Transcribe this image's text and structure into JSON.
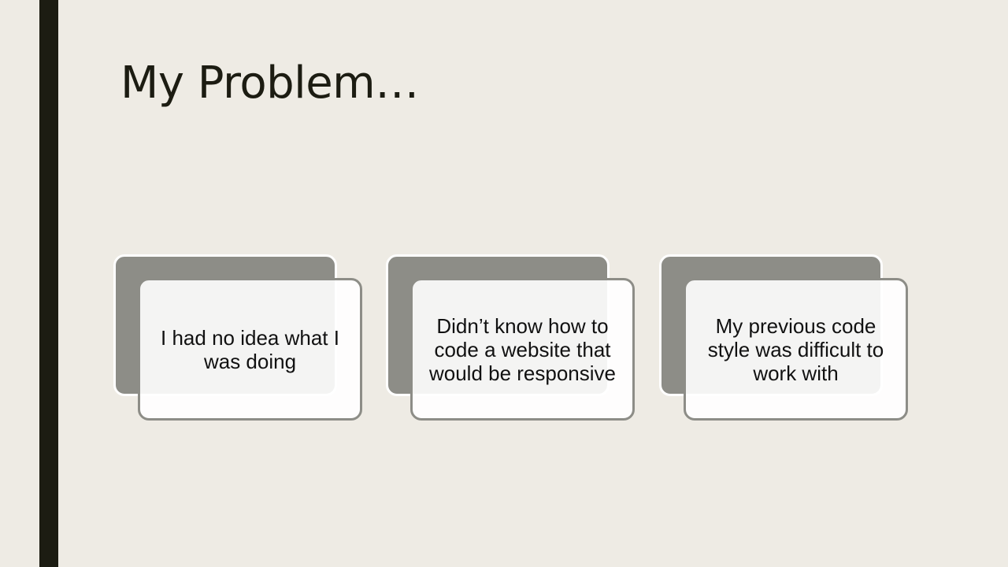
{
  "slide": {
    "title": "My Problem…",
    "cards": [
      {
        "text": "I had no idea what I was doing"
      },
      {
        "text": "Didn’t know how to code a website that would be responsive"
      },
      {
        "text": "My previous code style was difficult to work with"
      }
    ]
  },
  "colors": {
    "background": "#EEEBE4",
    "accent_bar": "#1C1C12",
    "card_back": "#8D8D87",
    "card_front": "#FFFFFF",
    "text": "#1C1C12"
  }
}
